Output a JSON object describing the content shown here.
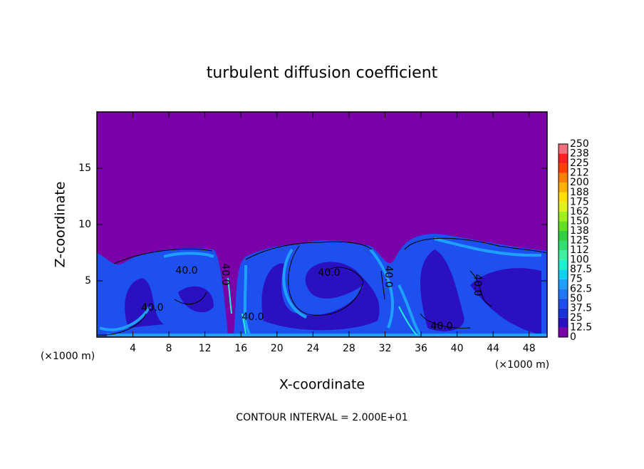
{
  "chart_data": {
    "type": "contour",
    "title": "turbulent diffusion coefficient",
    "xlabel": "X-coordinate",
    "ylabel": "Z-coordinate",
    "x_unit": "(×1000 m)",
    "annotation": "CONTOUR INTERVAL = 2.000E+01",
    "xlim": [
      0,
      50
    ],
    "xticks": [
      4,
      8,
      12,
      16,
      20,
      24,
      28,
      32,
      36,
      40,
      44,
      48
    ],
    "ylim": [
      0,
      20
    ],
    "yticks": [
      5,
      10,
      15
    ],
    "contour_labels": [
      "40.0",
      "40.0",
      "40.0",
      "40.0",
      "40.0",
      "40.0",
      "40.0",
      "40.0"
    ],
    "colorbar": {
      "levels": [
        0,
        12.5,
        25,
        37.5,
        50,
        62.5,
        75,
        87.5,
        100,
        {
          "value": 112.5,
          "label": "112"
        },
        125,
        {
          "value": 137.5,
          "label": "138"
        },
        150,
        {
          "value": 162.5,
          "label": "162"
        },
        175,
        {
          "value": 187.5,
          "label": "188"
        },
        200,
        {
          "value": 212.5,
          "label": "212"
        },
        225,
        {
          "value": 237.5,
          "label": "238"
        },
        250
      ],
      "colors": [
        "#7a00a8",
        "#2a10c0",
        "#1830d8",
        "#1e50f0",
        "#1e78ff",
        "#1ea0ff",
        "#10d0f0",
        "#20f0d0",
        "#40f0a0",
        "#30e070",
        "#30d040",
        "#60e020",
        "#a0f020",
        "#e0f020",
        "#ffe000",
        "#ffb000",
        "#ff8000",
        "#ff4000",
        "#ff2020",
        "#f07080"
      ]
    }
  }
}
